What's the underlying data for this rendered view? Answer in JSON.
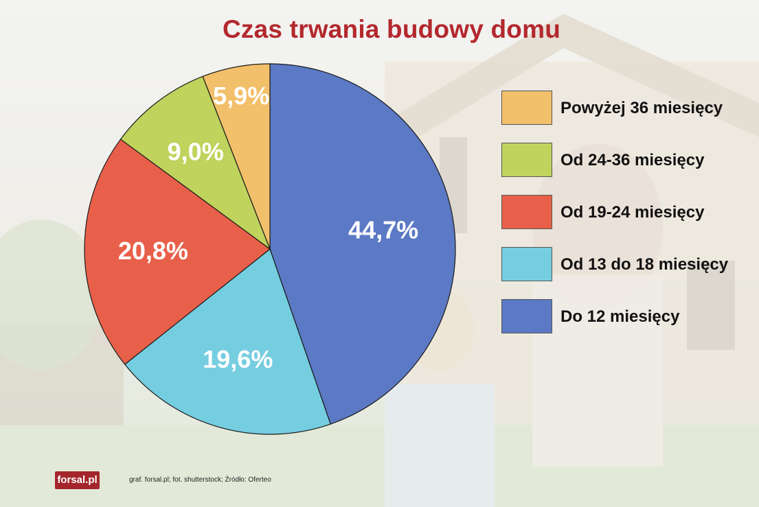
{
  "title": "Czas trwania budowy domu",
  "colors": {
    "title": "#b3282d",
    "logo_bg": "#a4262c"
  },
  "chart_data": {
    "type": "pie",
    "title": "Czas trwania budowy domu",
    "legend_position": "right",
    "slices": [
      {
        "label": "Do 12 miesięcy",
        "value": 44.7,
        "value_label": "44,7%",
        "color": "#5b79c4"
      },
      {
        "label": "Od 13 do 18 miesięcy",
        "value": 19.6,
        "value_label": "19,6%",
        "color": "#75cde0"
      },
      {
        "label": "Od 19-24 miesięcy",
        "value": 20.8,
        "value_label": "20,8%",
        "color": "#e8604a"
      },
      {
        "label": "Od 24-36 miesięcy",
        "value": 9.0,
        "value_label": "9,0%",
        "color": "#bfd35d"
      },
      {
        "label": "Powyżej 36 miesięcy",
        "value": 5.9,
        "value_label": "5,9%",
        "color": "#f2c06a"
      }
    ],
    "legend_order": [
      "Powyżej 36 miesięcy",
      "Od 24-36 miesięcy",
      "Od 19-24 miesięcy",
      "Od 13 do 18 miesięcy",
      "Do 12 miesięcy"
    ]
  },
  "footer": {
    "logo": "forsal.pl",
    "credit": "graf. forsal.pl; fot. shutterstock;  Źródło: Oferteo"
  }
}
